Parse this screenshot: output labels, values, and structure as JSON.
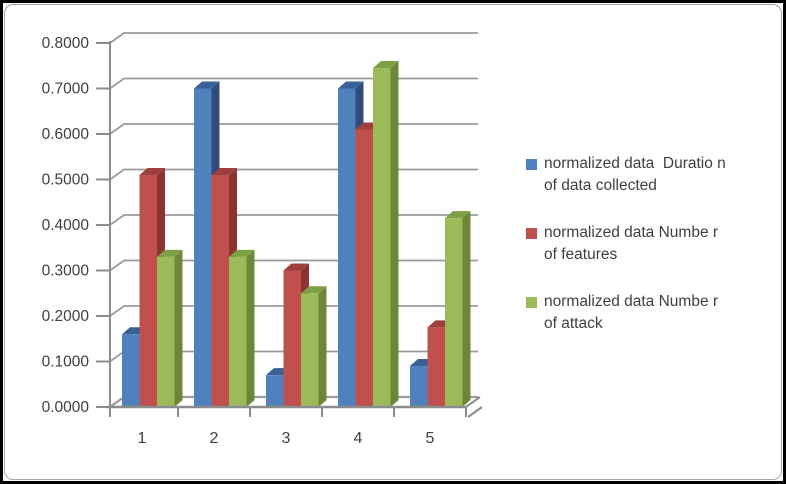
{
  "frame": {
    "outer_border_color": "#000000",
    "inner_border_color": "#a6a6a6",
    "background": "#ffffff"
  },
  "chart_data": {
    "type": "bar",
    "style": "3d-clustered-column",
    "categories": [
      "1",
      "2",
      "3",
      "4",
      "5"
    ],
    "series": [
      {
        "name": "normalized data  Duratio n of data collected",
        "legend_lines": [
          "normalized data  Duratio n",
          "of data collected"
        ],
        "color": "#4f81bd",
        "color_side": "#2e4e79",
        "color_top": "#3a6096",
        "values": [
          0.16,
          0.7,
          0.07,
          0.7,
          0.09
        ]
      },
      {
        "name": "normalized data Numbe r of features",
        "legend_lines": [
          "normalized data Numbe r",
          "of features"
        ],
        "color": "#c0504d",
        "color_side": "#8b3432",
        "color_top": "#9e403d",
        "values": [
          0.51,
          0.51,
          0.3,
          0.61,
          0.175
        ]
      },
      {
        "name": "normalized data Numbe r of attack",
        "legend_lines": [
          "normalized data Numbe r",
          "of attack"
        ],
        "color": "#9bbb59",
        "color_side": "#6b883a",
        "color_top": "#7da045",
        "values": [
          0.33,
          0.33,
          0.25,
          0.745,
          0.415
        ]
      }
    ],
    "ylim": [
      0,
      0.8
    ],
    "ytick_step": 0.1,
    "ytick_labels": [
      "0.0000",
      "0.1000",
      "0.2000",
      "0.3000",
      "0.4000",
      "0.5000",
      "0.6000",
      "0.7000",
      "0.8000"
    ],
    "grid": true,
    "legend_position": "right",
    "axis_color": "#8c8c8c",
    "grid_color": "#9a9a9a",
    "text_color": "#3f3f3f"
  }
}
